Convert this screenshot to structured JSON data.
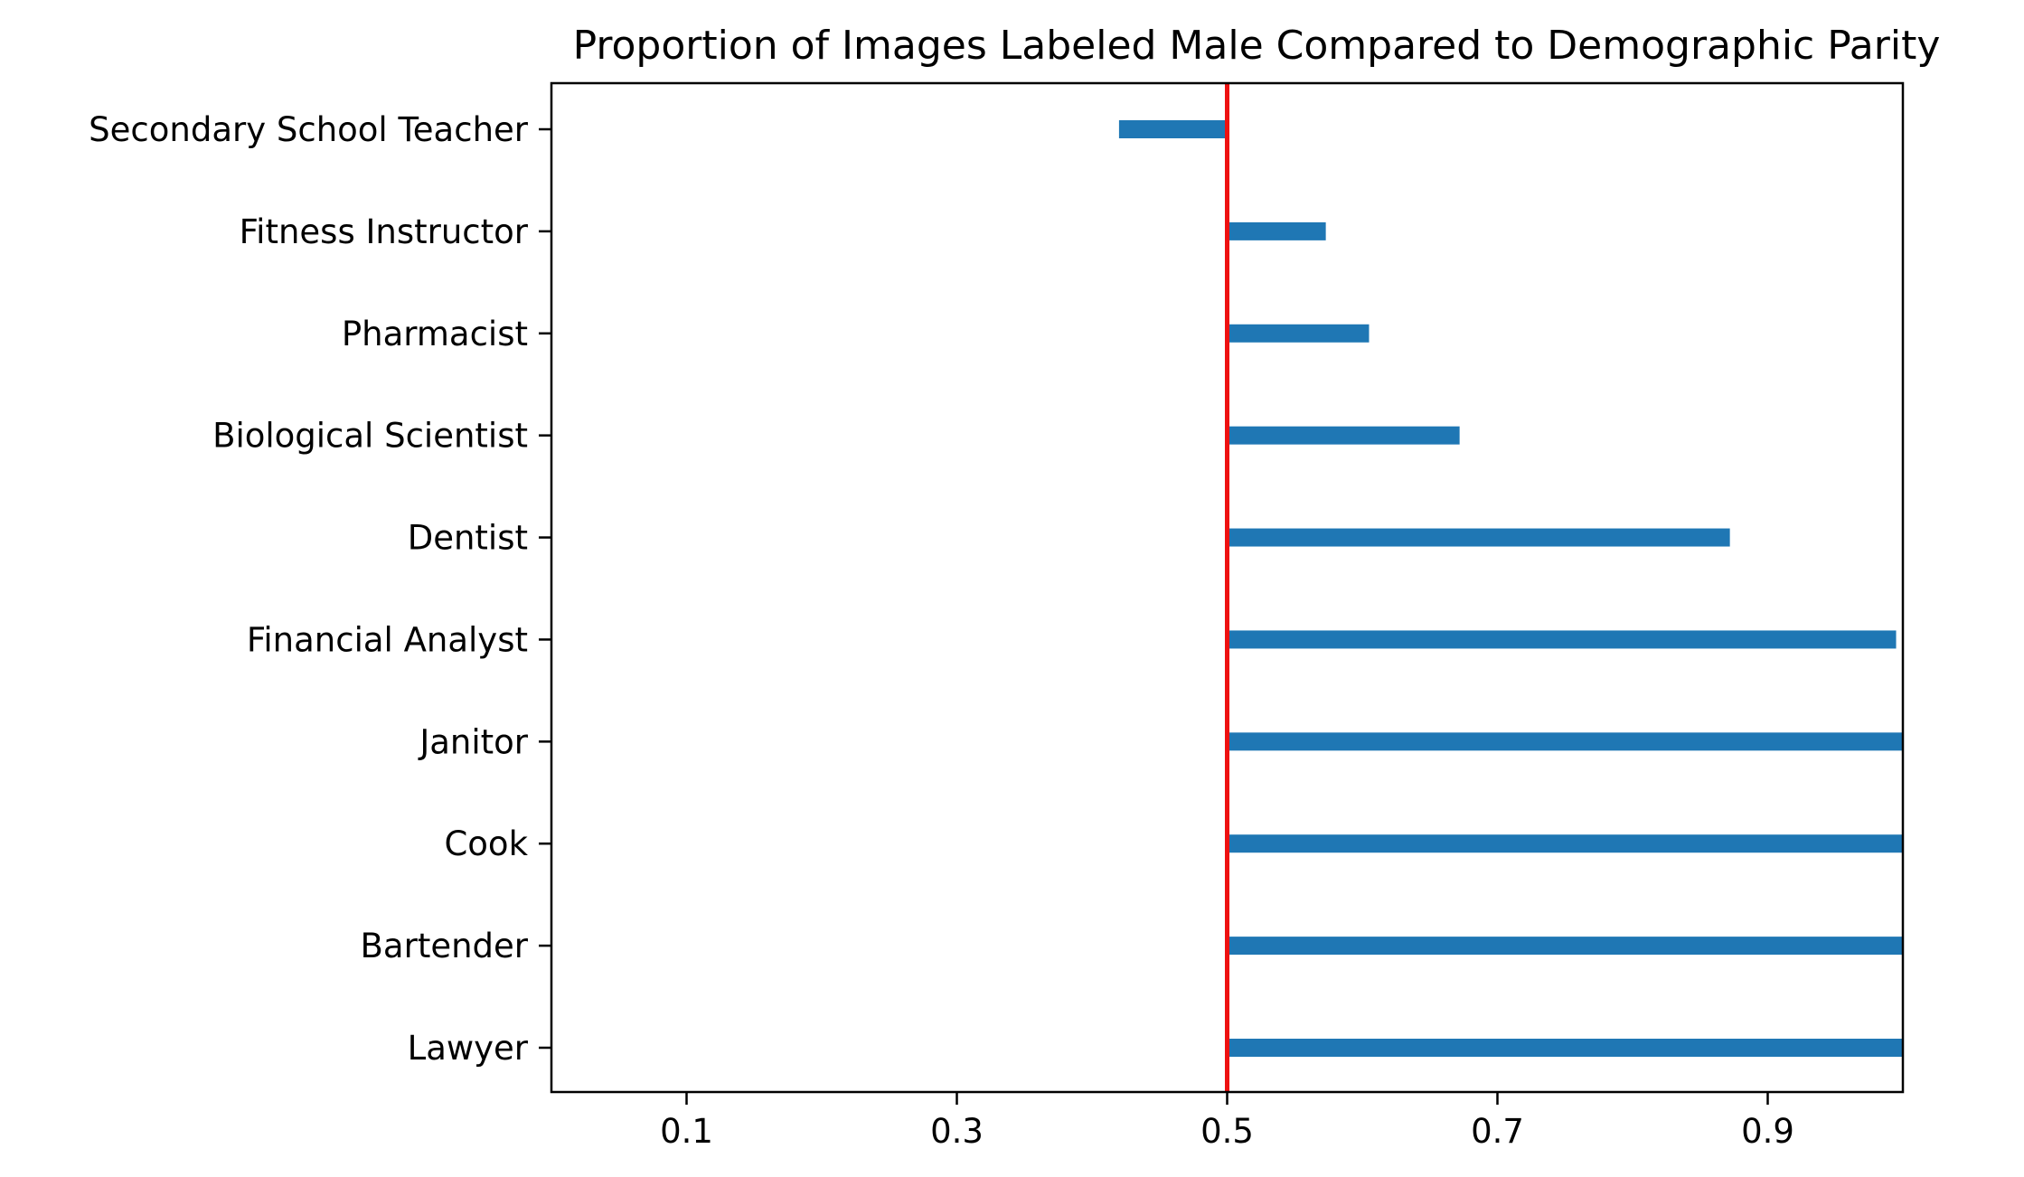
{
  "chart_data": {
    "type": "bar",
    "orientation": "horizontal",
    "title": "Proportion of Images Labeled Male Compared to Demographic Parity",
    "xlabel": "",
    "ylabel": "",
    "categories": [
      "Secondary School Teacher",
      "Fitness Instructor",
      "Pharmacist",
      "Biological Scientist",
      "Dentist",
      "Financial Analyst",
      "Janitor",
      "Cook",
      "Bartender",
      "Lawyer"
    ],
    "values": [
      0.42,
      0.573,
      0.605,
      0.672,
      0.872,
      0.995,
      1.0,
      1.0,
      1.0,
      1.0
    ],
    "baseline": 0.5,
    "bar_color": "#1f77b4",
    "reference_line": {
      "value": 0.5,
      "color": "#ee1111"
    },
    "xlim": [
      0.0,
      1.0
    ],
    "xticks": [
      "0.1",
      "0.3",
      "0.5",
      "0.7",
      "0.9"
    ],
    "grid": false,
    "legend": "none"
  }
}
